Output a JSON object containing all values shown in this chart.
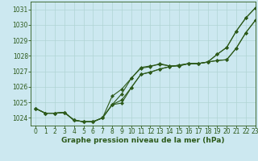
{
  "title": "Graphe pression niveau de la mer (hPa)",
  "background_color": "#cce8f0",
  "line_color": "#2d5a1b",
  "grid_color": "#b0d4d4",
  "xlim": [
    -0.5,
    23
  ],
  "ylim": [
    1023.5,
    1031.5
  ],
  "yticks": [
    1024,
    1025,
    1026,
    1027,
    1028,
    1029,
    1030,
    1031
  ],
  "xticks": [
    0,
    1,
    2,
    3,
    4,
    5,
    6,
    7,
    8,
    9,
    10,
    11,
    12,
    13,
    14,
    15,
    16,
    17,
    18,
    19,
    20,
    21,
    22,
    23
  ],
  "series": [
    [
      1024.6,
      1024.3,
      1024.3,
      1024.35,
      1023.85,
      1023.75,
      1023.75,
      1024.0,
      1024.85,
      1025.55,
      1026.55,
      1027.2,
      1027.3,
      1027.5,
      1027.35,
      1027.35,
      1027.5,
      1027.5,
      1027.6,
      1028.1,
      1028.55,
      1029.6,
      1030.45,
      1031.1
    ],
    [
      1024.6,
      1024.3,
      1024.3,
      1024.35,
      1023.85,
      1023.75,
      1023.75,
      1024.0,
      1025.4,
      1025.85,
      1026.55,
      1027.25,
      1027.35,
      1027.45,
      1027.35,
      1027.35,
      1027.5,
      1027.5,
      1027.6,
      1028.1,
      1028.55,
      1029.6,
      1030.45,
      1031.1
    ],
    [
      1024.6,
      1024.3,
      1024.3,
      1024.35,
      1023.85,
      1023.75,
      1023.75,
      1024.0,
      1024.85,
      1025.15,
      1025.95,
      1026.8,
      1026.95,
      1027.15,
      1027.3,
      1027.4,
      1027.5,
      1027.5,
      1027.6,
      1027.7,
      1027.75,
      1028.5,
      1029.5,
      1030.3
    ],
    [
      1024.6,
      1024.3,
      1024.3,
      1024.35,
      1023.85,
      1023.75,
      1023.75,
      1024.0,
      1024.85,
      1024.95,
      1025.95,
      1026.8,
      1026.95,
      1027.15,
      1027.3,
      1027.4,
      1027.5,
      1027.5,
      1027.6,
      1027.7,
      1027.75,
      1028.5,
      1029.5,
      1030.3
    ]
  ],
  "marker": "D",
  "markersize": 2.0,
  "linewidth": 0.8,
  "tick_fontsize": 5.5,
  "title_fontsize": 6.5
}
